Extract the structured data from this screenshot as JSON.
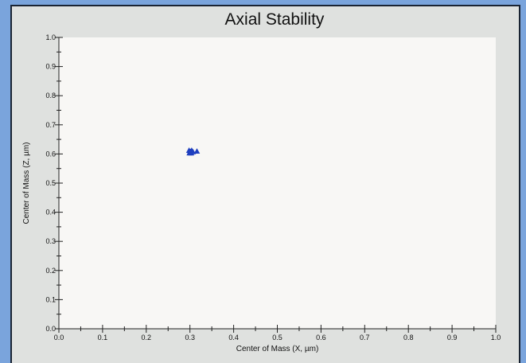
{
  "chart_data": {
    "type": "scatter",
    "title": "Axial Stability",
    "xlabel": "Center of Mass (X, µm)",
    "ylabel": "Center of Mass (Z, µm)",
    "xlim": [
      0.0,
      1.0
    ],
    "ylim": [
      0.0,
      1.0
    ],
    "xticks": [
      "0.0",
      "0.1",
      "0.2",
      "0.3",
      "0.4",
      "0.5",
      "0.6",
      "0.7",
      "0.8",
      "0.9",
      "1.0"
    ],
    "yticks": [
      "0.0",
      "0.1",
      "0.2",
      "0.3",
      "0.4",
      "0.5",
      "0.6",
      "0.7",
      "0.8",
      "0.9",
      "1.0"
    ],
    "grid": false,
    "marker": "triangle",
    "marker_color": "#1f3fbf",
    "points": [
      {
        "x": 0.298,
        "y": 0.612
      },
      {
        "x": 0.301,
        "y": 0.608
      },
      {
        "x": 0.304,
        "y": 0.612
      },
      {
        "x": 0.299,
        "y": 0.603
      },
      {
        "x": 0.303,
        "y": 0.603
      },
      {
        "x": 0.307,
        "y": 0.607
      },
      {
        "x": 0.3,
        "y": 0.607
      },
      {
        "x": 0.316,
        "y": 0.609
      }
    ]
  },
  "colors": {
    "outer_background": "#7aa4dc",
    "panel_background": "#dfe1df",
    "plot_background": "#f8f7f5",
    "axis": "#222222"
  }
}
